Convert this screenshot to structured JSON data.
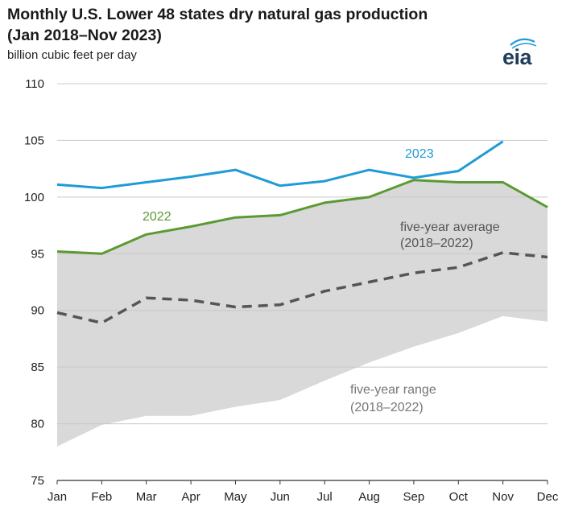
{
  "title_line1": "Monthly U.S. Lower 48 states dry natural gas production",
  "title_line2": "(Jan 2018–Nov 2023)",
  "logo_text": "eia",
  "chart_data": {
    "type": "line",
    "title": "Monthly U.S. Lower 48 states dry natural gas production (Jan 2018–Nov 2023)",
    "ylabel": "billion cubic feet per day",
    "xlabel": "",
    "ylim": [
      75,
      110
    ],
    "yticks": [
      75,
      80,
      85,
      90,
      95,
      100,
      105,
      110
    ],
    "grid": true,
    "categories": [
      "Jan",
      "Feb",
      "Mar",
      "Apr",
      "May",
      "Jun",
      "Jul",
      "Aug",
      "Sep",
      "Oct",
      "Nov",
      "Dec"
    ],
    "range": {
      "label_line1": "five-year range",
      "label_line2": "(2018–2022)",
      "min": [
        78.0,
        79.9,
        80.7,
        80.7,
        81.5,
        82.1,
        83.8,
        85.4,
        86.8,
        88.0,
        89.5,
        89.0
      ],
      "max": [
        95.2,
        95.0,
        96.7,
        97.4,
        98.2,
        98.4,
        99.5,
        100.0,
        101.5,
        101.3,
        101.3,
        99.1
      ],
      "color": "#d9d9d9"
    },
    "series": [
      {
        "name": "2023",
        "values": [
          101.1,
          100.8,
          101.3,
          101.8,
          102.4,
          101.0,
          101.4,
          102.4,
          101.7,
          102.3,
          104.9,
          null
        ],
        "color": "#1f9bd7",
        "dashed": false
      },
      {
        "name": "2022",
        "values": [
          95.2,
          95.0,
          96.7,
          97.4,
          98.2,
          98.4,
          99.5,
          100.0,
          101.5,
          101.3,
          101.3,
          99.1
        ],
        "color": "#5b9a32",
        "dashed": false
      },
      {
        "name": "five-year average",
        "name_line2": "(2018–2022)",
        "values": [
          89.8,
          88.9,
          91.1,
          90.9,
          90.3,
          90.5,
          91.7,
          92.5,
          93.3,
          93.8,
          95.1,
          94.7
        ],
        "color": "#555555",
        "dashed": true
      }
    ]
  }
}
